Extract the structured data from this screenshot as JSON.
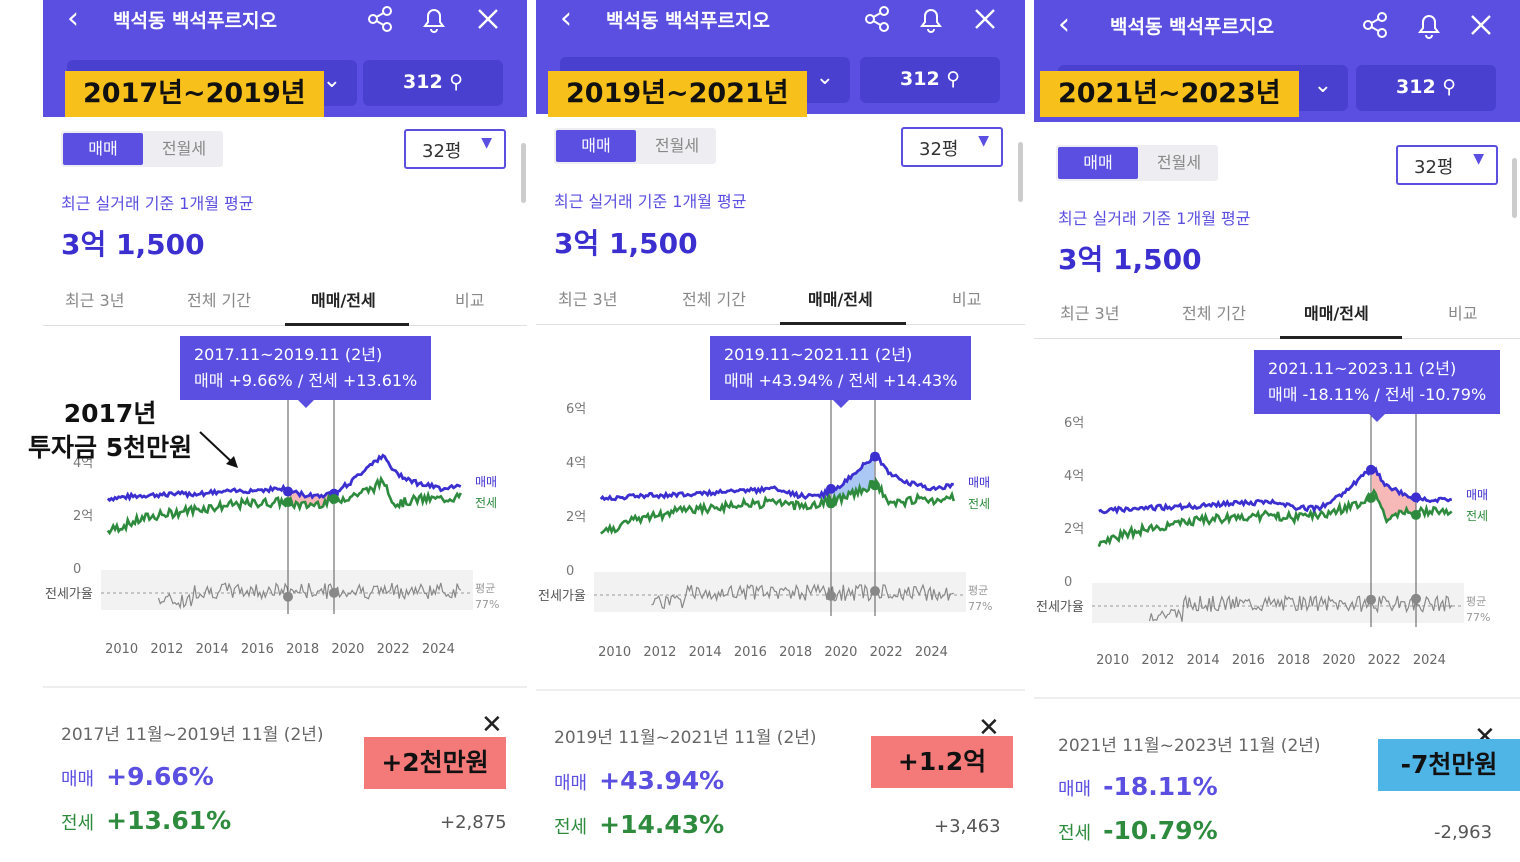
{
  "panels": [
    {
      "header_title": "백석동 백석푸르지오",
      "count": "312",
      "year_label": "2017년~2019년",
      "size": "32평",
      "sale_tab": "매매",
      "rent_tab": "전월세",
      "subtitle": "최근 실거래 기준 1개월 평균",
      "price": "3억 1,500",
      "tabs": [
        "최근 3년",
        "전체 기간",
        "매매/전세",
        "비교"
      ],
      "tooltip_period": "2017.11~2019.11 (2년)",
      "tooltip_values": "매매 +9.66%  /  전세 +13.61%",
      "period_text": "2017년 11월~2019년 11월 (2년)",
      "sale_label": "매매",
      "sale_change": "+9.66%",
      "jeonse_label": "전세",
      "jeonse_change": "+13.61%",
      "jeonse_amount": "+2,875",
      "badge": "+2천만원",
      "badge_color": "#f47a7a",
      "chart": {
        "y_ticks": [
          "4억",
          "2억",
          "0"
        ],
        "legend_sale": "매매",
        "legend_jeonse": "전세",
        "ratio_label": "전세가율",
        "avg_label": "평균",
        "avg_value": "77%",
        "x_ticks": [
          "2010",
          "2012",
          "2014",
          "2016",
          "2018",
          "2020",
          "2022",
          "2024"
        ]
      }
    },
    {
      "header_title": "백석동 백석푸르지오",
      "count": "312",
      "year_label": "2019년~2021년",
      "size": "32평",
      "sale_tab": "매매",
      "rent_tab": "전월세",
      "subtitle": "최근 실거래 기준 1개월 평균",
      "price": "3억 1,500",
      "tabs": [
        "최근 3년",
        "전체 기간",
        "매매/전세",
        "비교"
      ],
      "tooltip_period": "2019.11~2021.11 (2년)",
      "tooltip_values": "매매 +43.94%  /  전세 +14.43%",
      "period_text": "2019년 11월~2021년 11월 (2년)",
      "sale_label": "매매",
      "sale_change": "+43.94%",
      "jeonse_label": "전세",
      "jeonse_change": "+14.43%",
      "jeonse_amount": "+3,463",
      "badge": "+1.2억",
      "badge_color": "#f47a7a",
      "chart": {
        "y_ticks": [
          "6억",
          "4억",
          "2억",
          "0"
        ],
        "legend_sale": "매매",
        "legend_jeonse": "전세",
        "ratio_label": "전세가율",
        "avg_label": "평균",
        "avg_value": "77%",
        "x_ticks": [
          "2010",
          "2012",
          "2014",
          "2016",
          "2018",
          "2020",
          "2022",
          "2024"
        ]
      }
    },
    {
      "header_title": "백석동 백석푸르지오",
      "count": "312",
      "year_label": "2021년~2023년",
      "size": "32평",
      "sale_tab": "매매",
      "rent_tab": "전월세",
      "subtitle": "최근 실거래 기준 1개월 평균",
      "price": "3억 1,500",
      "tabs": [
        "최근 3년",
        "전체 기간",
        "매매/전세",
        "비교"
      ],
      "tooltip_period": "2021.11~2023.11 (2년)",
      "tooltip_values": "매매 -18.11%  /  전세 -10.79%",
      "period_text": "2021년 11월~2023년 11월 (2년)",
      "sale_label": "매매",
      "sale_change": "-18.11%",
      "jeonse_label": "전세",
      "jeonse_change": "-10.79%",
      "jeonse_amount": "-2,963",
      "badge": "-7천만원",
      "badge_color": "#4fb4e6",
      "chart": {
        "y_ticks": [
          "6억",
          "4억",
          "2억",
          "0"
        ],
        "legend_sale": "매매",
        "legend_jeonse": "전세",
        "ratio_label": "전세가율",
        "avg_label": "평균",
        "avg_value": "77%",
        "x_ticks": [
          "2010",
          "2012",
          "2014",
          "2016",
          "2018",
          "2020",
          "2022",
          "2024"
        ]
      }
    }
  ],
  "annotation": {
    "line1": "2017년",
    "line2": "투자금 5천만원"
  },
  "colors": {
    "header": "#5a4fe0",
    "sale": "#3c2fd0",
    "jeonse": "#2e8b3e",
    "highlight": "#f8c01b"
  }
}
